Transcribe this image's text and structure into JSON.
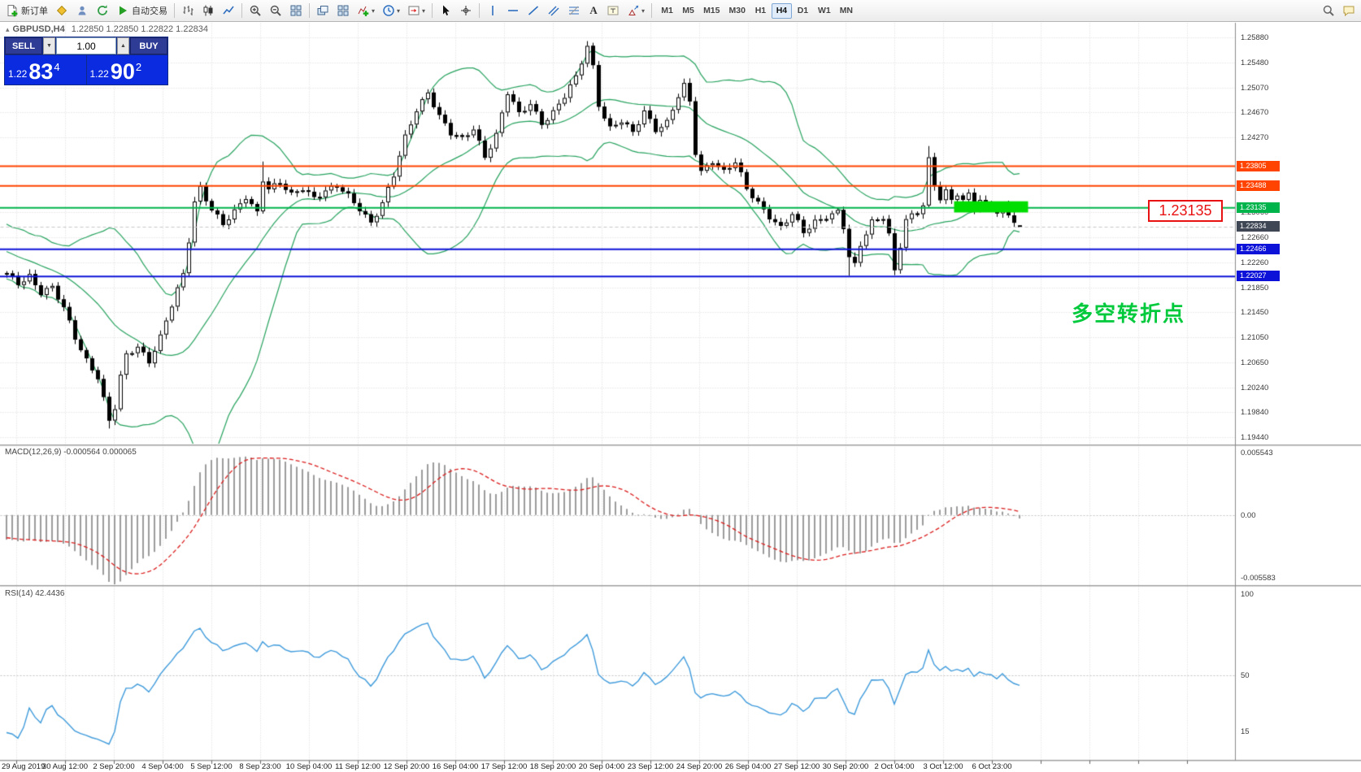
{
  "toolbar": {
    "new_order_label": "新订单",
    "auto_trading_label": "自动交易",
    "text_tool_label": "A",
    "timeframes": [
      "M1",
      "M5",
      "M15",
      "M30",
      "H1",
      "H4",
      "D1",
      "W1",
      "MN"
    ],
    "active_timeframe": "H4"
  },
  "chart": {
    "header": {
      "symbol": "GBPUSD,H4",
      "ohlc": "1.22850 1.22850 1.22822 1.22834"
    },
    "trade_panel": {
      "sell_label": "SELL",
      "buy_label": "BUY",
      "volume": "1.00",
      "sell_price_prefix": "1.22",
      "sell_price_big": "83",
      "sell_price_sup": "4",
      "buy_price_prefix": "1.22",
      "buy_price_big": "90",
      "buy_price_sup": "2"
    },
    "annotation_text": "多空转折点",
    "price_callout": "1.23135",
    "price_axis_labels": [
      "1.25880",
      "1.25480",
      "1.25070",
      "1.24670",
      "1.24270",
      "1.23060",
      "1.22660",
      "1.22260",
      "1.21850",
      "1.21450",
      "1.21050",
      "1.20650",
      "1.20240",
      "1.19840",
      "1.19440"
    ],
    "level_badges": [
      {
        "text": "1.23805",
        "price": 1.23805,
        "color": "#ff4402",
        "role": "resistance"
      },
      {
        "text": "1.23488",
        "price": 1.23488,
        "color": "#ff4402",
        "role": "resistance"
      },
      {
        "text": "1.23135",
        "price": 1.23135,
        "color": "#00b44c",
        "role": "pivot"
      },
      {
        "text": "1.22834",
        "price": 1.22834,
        "color": "#3f4654",
        "role": "current-price"
      },
      {
        "text": "1.22466",
        "price": 1.22466,
        "color": "#0d12d8",
        "role": "support"
      },
      {
        "text": "1.22027",
        "price": 1.22027,
        "color": "#0d12d8",
        "role": "support"
      }
    ],
    "highlight_zone": {
      "price_top": 1.2324,
      "price_bottom": 1.2306,
      "bar_start": 166.5,
      "bar_end": 179.5,
      "color": "#00dd00"
    }
  },
  "macd": {
    "label": "MACD(12,26,9) -0.000564 0.000065",
    "axis_labels": [
      "0.005543",
      "0.00",
      "-0.005583"
    ],
    "fast": 12,
    "slow": 26,
    "signal": 9
  },
  "rsi": {
    "label": "RSI(14) 42.4436",
    "axis_labels": [
      "100",
      "50",
      "15"
    ],
    "period": 14,
    "value": 42.4436
  },
  "time_axis_labels": [
    "29 Aug 2019",
    "30 Aug 12:00",
    "2 Sep 20:00",
    "4 Sep 04:00",
    "5 Sep 12:00",
    "8 Sep 23:00",
    "10 Sep 04:00",
    "11 Sep 12:00",
    "12 Sep 20:00",
    "16 Sep 04:00",
    "17 Sep 12:00",
    "18 Sep 20:00",
    "20 Sep 04:00",
    "23 Sep 12:00",
    "24 Sep 20:00",
    "26 Sep 04:00",
    "27 Sep 12:00",
    "30 Sep 20:00",
    "2 Oct 04:00",
    "3 Oct 12:00",
    "6 Oct 23:00"
  ],
  "chart_data": {
    "type": "candlestick",
    "symbol": "GBPUSD",
    "timeframe": "H4",
    "close_waypoints": [
      [
        -40,
        1.233
      ],
      [
        -30,
        1.231
      ],
      [
        -22,
        1.229
      ],
      [
        -14,
        1.226
      ],
      [
        -7,
        1.2235
      ],
      [
        0,
        1.2205
      ],
      [
        2,
        1.2192
      ],
      [
        4,
        1.2206
      ],
      [
        6,
        1.2178
      ],
      [
        8,
        1.2184
      ],
      [
        10,
        1.215
      ],
      [
        12,
        1.2105
      ],
      [
        14,
        1.207
      ],
      [
        16,
        1.2042
      ],
      [
        17,
        1.2005
      ],
      [
        18,
        1.1968
      ],
      [
        19,
        1.199
      ],
      [
        20,
        1.204
      ],
      [
        21,
        1.2075
      ],
      [
        23,
        1.2092
      ],
      [
        25,
        1.2068
      ],
      [
        27,
        1.2105
      ],
      [
        29,
        1.2155
      ],
      [
        31,
        1.2205
      ],
      [
        32,
        1.2262
      ],
      [
        33,
        1.2325
      ],
      [
        34,
        1.2348
      ],
      [
        36,
        1.2312
      ],
      [
        38,
        1.2285
      ],
      [
        40,
        1.2305
      ],
      [
        42,
        1.2332
      ],
      [
        44,
        1.2308
      ],
      [
        45,
        1.2362
      ],
      [
        46,
        1.2345
      ],
      [
        48,
        1.2352
      ],
      [
        50,
        1.2332
      ],
      [
        52,
        1.2346
      ],
      [
        54,
        1.2332
      ],
      [
        56,
        1.2342
      ],
      [
        58,
        1.2347
      ],
      [
        60,
        1.233
      ],
      [
        62,
        1.2312
      ],
      [
        64,
        1.2292
      ],
      [
        66,
        1.2322
      ],
      [
        68,
        1.2365
      ],
      [
        70,
        1.2425
      ],
      [
        72,
        1.2472
      ],
      [
        74,
        1.2502
      ],
      [
        76,
        1.2462
      ],
      [
        78,
        1.2432
      ],
      [
        80,
        1.2422
      ],
      [
        82,
        1.2442
      ],
      [
        84,
        1.2398
      ],
      [
        86,
        1.2432
      ],
      [
        88,
        1.2498
      ],
      [
        90,
        1.2462
      ],
      [
        92,
        1.2482
      ],
      [
        94,
        1.2452
      ],
      [
        96,
        1.2468
      ],
      [
        98,
        1.2492
      ],
      [
        100,
        1.2522
      ],
      [
        102,
        1.2575
      ],
      [
        103,
        1.2542
      ],
      [
        104,
        1.2482
      ],
      [
        106,
        1.2442
      ],
      [
        108,
        1.2452
      ],
      [
        110,
        1.2432
      ],
      [
        112,
        1.247
      ],
      [
        114,
        1.2442
      ],
      [
        116,
        1.2452
      ],
      [
        118,
        1.2492
      ],
      [
        119,
        1.2508
      ],
      [
        120,
        1.2482
      ],
      [
        121,
        1.2402
      ],
      [
        122,
        1.2372
      ],
      [
        124,
        1.2392
      ],
      [
        126,
        1.2372
      ],
      [
        128,
        1.2386
      ],
      [
        130,
        1.2342
      ],
      [
        132,
        1.2322
      ],
      [
        134,
        1.2302
      ],
      [
        136,
        1.2282
      ],
      [
        138,
        1.2302
      ],
      [
        140,
        1.2272
      ],
      [
        142,
        1.2292
      ],
      [
        144,
        1.2302
      ],
      [
        146,
        1.2308
      ],
      [
        147,
        1.2282
      ],
      [
        148,
        1.2232
      ],
      [
        149,
        1.2218
      ],
      [
        150,
        1.2252
      ],
      [
        152,
        1.2292
      ],
      [
        154,
        1.2302
      ],
      [
        155,
        1.2272
      ],
      [
        156,
        1.2212
      ],
      [
        157,
        1.2252
      ],
      [
        158,
        1.2292
      ],
      [
        159,
        1.2298
      ],
      [
        160,
        1.2304
      ],
      [
        161,
        1.2318
      ],
      [
        162,
        1.2392
      ],
      [
        163,
        1.2352
      ],
      [
        164,
        1.2332
      ],
      [
        165,
        1.2342
      ],
      [
        166,
        1.2326
      ],
      [
        167,
        1.2336
      ],
      [
        168,
        1.2322
      ],
      [
        169,
        1.2332
      ],
      [
        170,
        1.2312
      ],
      [
        171,
        1.2326
      ],
      [
        172,
        1.2316
      ],
      [
        173,
        1.2322
      ],
      [
        174,
        1.231
      ],
      [
        175,
        1.2318
      ],
      [
        176,
        1.2302
      ],
      [
        177,
        1.2292
      ],
      [
        178,
        1.2283
      ]
    ],
    "wick_overrides": {
      "18": {
        "low": 1.1958
      },
      "45": {
        "high": 1.2388
      },
      "102": {
        "high": 1.2582
      },
      "148": {
        "low": 1.2204
      },
      "156": {
        "low": 1.2205
      },
      "162": {
        "high": 1.2413
      }
    },
    "last_candle": {
      "open": 1.2285,
      "high": 1.2285,
      "low": 1.22822,
      "close": 1.22834
    },
    "horizontal_levels": [
      {
        "price": 1.23805,
        "color": "#ff4402"
      },
      {
        "price": 1.23488,
        "color": "#ff4402"
      },
      {
        "price": 1.23135,
        "color": "#00b44c"
      },
      {
        "price": 1.22466,
        "color": "#0d12d8"
      },
      {
        "price": 1.22027,
        "color": "#0d12d8"
      }
    ],
    "bollinger": {
      "period": 20,
      "deviation": 2,
      "color": "#27a35f"
    }
  },
  "colors": {
    "background": "#ffffff",
    "grid": "#dadada",
    "bull_candle": "#ffffff",
    "bear_candle": "#000000",
    "candle_outline": "#000000",
    "macd_histogram": "#9b9b9b",
    "macd_signal": "#dc1e1e",
    "rsi_line": "#3f9bdc",
    "annotation_green": "#00c93c",
    "callout_red": "#e81212",
    "sell_buy_button": "#2e3c96",
    "price_box": "#0b2be0",
    "current_price_dash": "#c8c8c8"
  }
}
